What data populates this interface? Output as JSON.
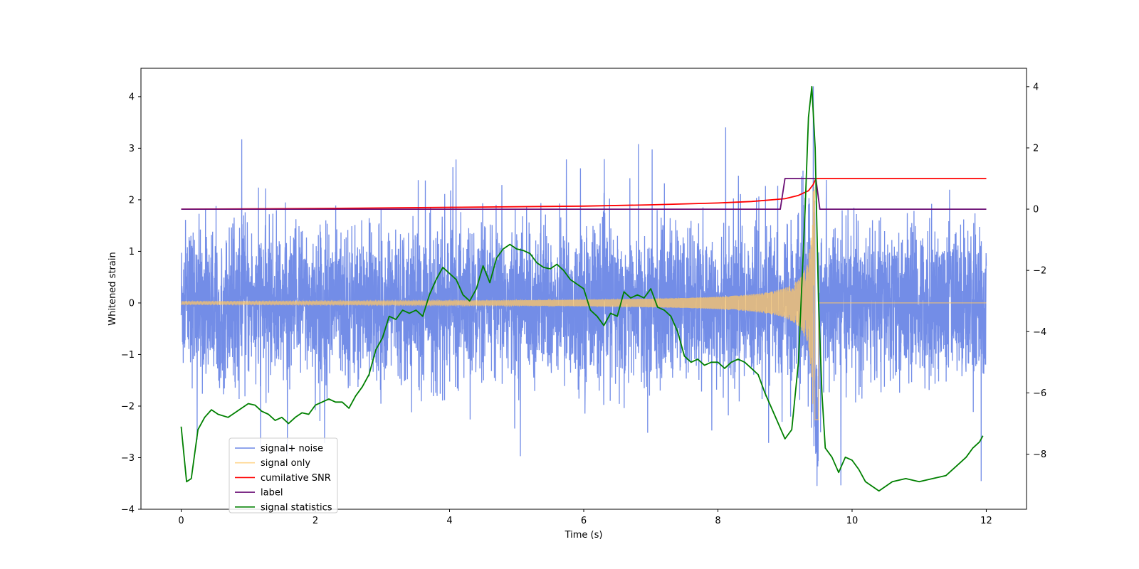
{
  "chart_data": {
    "type": "line",
    "title": "",
    "xlabel": "Time (s)",
    "ylabel": "Whitened strain",
    "y2label": "",
    "xlim": [
      -0.6,
      12.6
    ],
    "ylim": [
      -4.0,
      4.55
    ],
    "y2lim": [
      -9.8,
      4.6
    ],
    "xticks": [
      0,
      2,
      4,
      6,
      8,
      10,
      12
    ],
    "yticks": [
      -4,
      -3,
      -2,
      -1,
      0,
      1,
      2,
      3,
      4
    ],
    "y2ticks": [
      -8,
      -6,
      -4,
      -2,
      0,
      2,
      4
    ],
    "grid": false,
    "legend_position": "lower-left",
    "colors": {
      "signal_noise": "#6b87e6",
      "signal_only": "#ffc766",
      "snr": "#ff0000",
      "label": "#6a0d74",
      "stat": "#008000"
    },
    "series": [
      {
        "name": "signal+ noise",
        "axis": "left",
        "description_range": [
          -3.6,
          4.2
        ],
        "peak_time": 9.45
      },
      {
        "name": "signal only",
        "axis": "left",
        "x": [
          0,
          9.0,
          9.45,
          9.5,
          12.0
        ],
        "envelope": [
          0.03,
          0.3,
          2.4,
          0.0,
          0.0
        ],
        "peak_time": 9.45
      },
      {
        "name": "cumilative SNR",
        "axis": "right",
        "x": [
          0,
          2,
          4,
          6,
          7,
          8,
          8.5,
          9.0,
          9.2,
          9.35,
          9.42,
          9.46,
          9.5,
          12.0
        ],
        "y": [
          0.0,
          0.02,
          0.06,
          0.1,
          0.14,
          0.2,
          0.25,
          0.34,
          0.45,
          0.6,
          0.8,
          1.0,
          1.0,
          1.0
        ]
      },
      {
        "name": "label",
        "axis": "right",
        "x": [
          0,
          8.93,
          9.0,
          9.46,
          9.52,
          12.0
        ],
        "y": [
          0,
          0,
          1,
          1,
          0,
          0
        ]
      },
      {
        "name": "signal statistics",
        "axis": "right",
        "x": [
          0.0,
          0.08,
          0.15,
          0.25,
          0.35,
          0.45,
          0.55,
          0.7,
          0.8,
          0.9,
          1.0,
          1.1,
          1.2,
          1.3,
          1.4,
          1.5,
          1.6,
          1.7,
          1.8,
          1.9,
          2.0,
          2.1,
          2.2,
          2.3,
          2.4,
          2.5,
          2.6,
          2.7,
          2.8,
          2.9,
          3.0,
          3.1,
          3.2,
          3.3,
          3.4,
          3.5,
          3.6,
          3.7,
          3.8,
          3.9,
          4.0,
          4.1,
          4.2,
          4.3,
          4.4,
          4.5,
          4.6,
          4.7,
          4.8,
          4.9,
          5.0,
          5.1,
          5.2,
          5.3,
          5.4,
          5.5,
          5.6,
          5.7,
          5.8,
          5.9,
          6.0,
          6.1,
          6.2,
          6.3,
          6.4,
          6.5,
          6.6,
          6.7,
          6.8,
          6.9,
          7.0,
          7.1,
          7.2,
          7.3,
          7.4,
          7.5,
          7.6,
          7.7,
          7.8,
          7.9,
          8.0,
          8.1,
          8.2,
          8.3,
          8.4,
          8.5,
          8.6,
          8.7,
          8.8,
          8.9,
          9.0,
          9.1,
          9.2,
          9.3,
          9.35,
          9.4,
          9.45,
          9.5,
          9.55,
          9.6,
          9.7,
          9.8,
          9.9,
          10.0,
          10.1,
          10.2,
          10.4,
          10.6,
          10.8,
          11.0,
          11.2,
          11.4,
          11.6,
          11.7,
          11.8,
          11.9,
          11.95
        ],
        "y": [
          -7.1,
          -8.9,
          -8.8,
          -7.2,
          -6.8,
          -6.55,
          -6.7,
          -6.8,
          -6.65,
          -6.5,
          -6.35,
          -6.4,
          -6.6,
          -6.7,
          -6.9,
          -6.8,
          -7.0,
          -6.8,
          -6.65,
          -6.7,
          -6.4,
          -6.3,
          -6.2,
          -6.3,
          -6.3,
          -6.5,
          -6.1,
          -5.8,
          -5.4,
          -4.6,
          -4.2,
          -3.5,
          -3.6,
          -3.3,
          -3.4,
          -3.3,
          -3.5,
          -2.8,
          -2.3,
          -1.9,
          -2.1,
          -2.3,
          -2.8,
          -3.0,
          -2.6,
          -1.85,
          -2.4,
          -1.6,
          -1.3,
          -1.15,
          -1.3,
          -1.35,
          -1.45,
          -1.75,
          -1.9,
          -1.95,
          -1.8,
          -2.0,
          -2.3,
          -2.45,
          -2.6,
          -3.3,
          -3.5,
          -3.8,
          -3.4,
          -3.5,
          -2.7,
          -2.9,
          -2.8,
          -2.9,
          -2.6,
          -3.2,
          -3.3,
          -3.5,
          -4.0,
          -4.8,
          -5.0,
          -4.9,
          -5.1,
          -5.0,
          -5.0,
          -5.2,
          -5.0,
          -4.9,
          -5.0,
          -5.2,
          -5.4,
          -6.0,
          -6.5,
          -7.0,
          -7.5,
          -7.2,
          -5.0,
          0.0,
          3.0,
          4.0,
          2.0,
          -3.0,
          -6.0,
          -7.8,
          -8.1,
          -8.6,
          -8.1,
          -8.2,
          -8.5,
          -8.9,
          -9.2,
          -8.9,
          -8.8,
          -8.9,
          -8.8,
          -8.7,
          -8.3,
          -8.1,
          -7.8,
          -7.6,
          -7.4
        ]
      }
    ],
    "legend_entries": [
      "signal+ noise",
      "signal only",
      "cumilative SNR",
      "label",
      "signal statistics"
    ]
  }
}
